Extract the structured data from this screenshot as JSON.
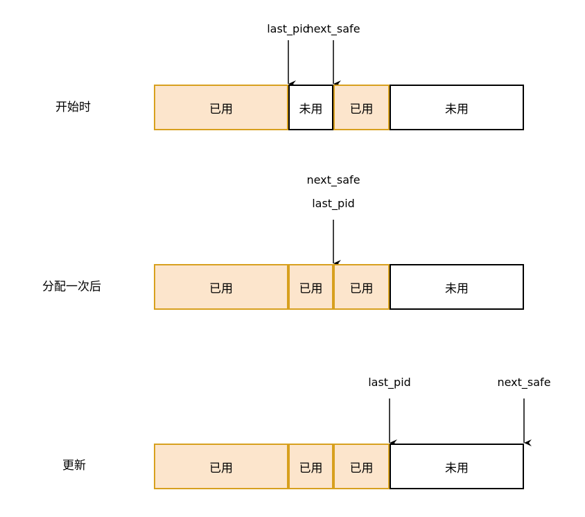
{
  "colors": {
    "used_fill": "#fce5cc",
    "used_border": "#d7a01e",
    "free_border": "#000000"
  },
  "rows": [
    {
      "label": "开始时",
      "cells": [
        {
          "text": "已用",
          "state": "used"
        },
        {
          "text": "未用",
          "state": "free"
        },
        {
          "text": "已用",
          "state": "used"
        },
        {
          "text": "未用",
          "state": "free"
        }
      ],
      "pointers": [
        {
          "labels": [
            "last_pid"
          ]
        },
        {
          "labels": [
            "next_safe"
          ]
        }
      ]
    },
    {
      "label": "分配一次后",
      "cells": [
        {
          "text": "已用",
          "state": "used"
        },
        {
          "text": "已用",
          "state": "used"
        },
        {
          "text": "已用",
          "state": "used"
        },
        {
          "text": "未用",
          "state": "free"
        }
      ],
      "pointers": [
        {
          "labels": [
            "next_safe",
            "last_pid"
          ]
        }
      ]
    },
    {
      "label": "更新",
      "cells": [
        {
          "text": "已用",
          "state": "used"
        },
        {
          "text": "已用",
          "state": "used"
        },
        {
          "text": "已用",
          "state": "used"
        },
        {
          "text": "未用",
          "state": "free"
        }
      ],
      "pointers": [
        {
          "labels": [
            "last_pid"
          ]
        },
        {
          "labels": [
            "next_safe"
          ]
        }
      ]
    }
  ]
}
